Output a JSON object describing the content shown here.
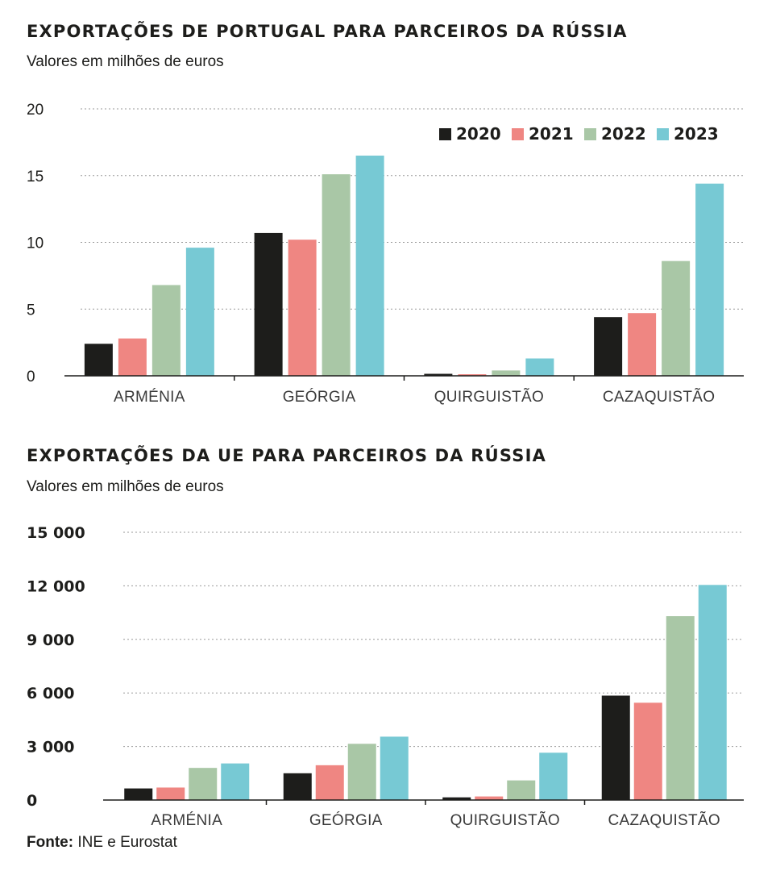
{
  "source": {
    "label": "Fonte:",
    "text": " INE e Eurostat"
  },
  "chart_data": [
    {
      "type": "bar",
      "title": "EXPORTAÇÕES DE PORTUGAL PARA PARCEIROS DA RÚSSIA",
      "subtitle": "Valores em milhões de euros",
      "categories": [
        "ARMÉNIA",
        "GEÓRGIA",
        "QUIRGUISTÃO",
        "CAZAQUISTÃO"
      ],
      "series": [
        {
          "name": "2020",
          "color": "#1d1d1b",
          "values": [
            2.4,
            10.7,
            0.15,
            4.4
          ]
        },
        {
          "name": "2021",
          "color": "#ef8682",
          "values": [
            2.8,
            10.2,
            0.12,
            4.7
          ]
        },
        {
          "name": "2022",
          "color": "#a9c7a6",
          "values": [
            6.8,
            15.1,
            0.4,
            8.6
          ]
        },
        {
          "name": "2023",
          "color": "#77c9d4",
          "values": [
            9.6,
            16.5,
            1.3,
            14.4
          ]
        }
      ],
      "ylim": [
        0,
        20
      ],
      "yticks": [
        0,
        5,
        10,
        15,
        20
      ],
      "ytick_labels": [
        "0",
        "5",
        "10",
        "15",
        "20"
      ],
      "grid": true,
      "legend": "top-right",
      "bold_ticks": false
    },
    {
      "type": "bar",
      "title": "EXPORTAÇÕES DA UE PARA PARCEIROS DA RÚSSIA",
      "subtitle": "Valores em milhões de euros",
      "categories": [
        "ARMÉNIA",
        "GEÓRGIA",
        "QUIRGUISTÃO",
        "CAZAQUISTÃO"
      ],
      "series": [
        {
          "name": "2020",
          "color": "#1d1d1b",
          "values": [
            650,
            1500,
            150,
            5850
          ]
        },
        {
          "name": "2021",
          "color": "#ef8682",
          "values": [
            700,
            1950,
            200,
            5450
          ]
        },
        {
          "name": "2022",
          "color": "#a9c7a6",
          "values": [
            1800,
            3150,
            1100,
            10300
          ]
        },
        {
          "name": "2023",
          "color": "#77c9d4",
          "values": [
            2050,
            3550,
            2650,
            12050
          ]
        }
      ],
      "ylim": [
        0,
        15000
      ],
      "yticks": [
        0,
        3000,
        6000,
        9000,
        12000,
        15000
      ],
      "ytick_labels": [
        "0",
        "3 000",
        "6 000",
        "9 000",
        "12 000",
        "15 000"
      ],
      "grid": true,
      "legend": "none",
      "bold_ticks": true
    }
  ]
}
